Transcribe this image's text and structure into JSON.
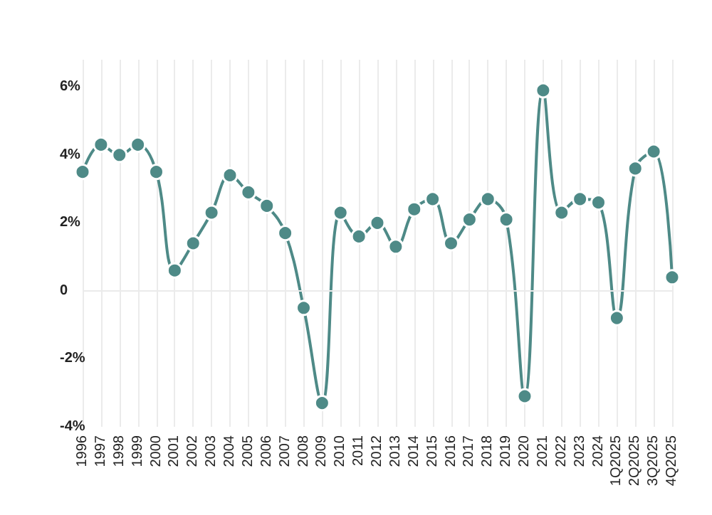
{
  "chart_data": {
    "type": "line",
    "categories": [
      "1996",
      "1997",
      "1998",
      "1999",
      "2000",
      "2001",
      "2002",
      "2003",
      "2004",
      "2005",
      "2006",
      "2007",
      "2008",
      "2009",
      "2010",
      "2011",
      "2012",
      "2013",
      "2014",
      "2015",
      "2016",
      "2017",
      "2018",
      "2019",
      "2020",
      "2021",
      "2022",
      "2023",
      "2024",
      "1Q2025",
      "2Q2025",
      "3Q2025",
      "4Q2025"
    ],
    "series": [
      {
        "color": "#4e8a87",
        "values": [
          3.5,
          4.3,
          4.0,
          4.3,
          3.5,
          0.6,
          1.4,
          2.3,
          3.4,
          2.9,
          2.5,
          1.7,
          -0.5,
          -3.3,
          2.3,
          1.6,
          2.0,
          1.3,
          2.4,
          2.7,
          1.4,
          2.1,
          2.7,
          2.1,
          -3.1,
          5.9,
          2.3,
          2.7,
          2.6,
          -0.8,
          3.6,
          4.1,
          0.4
        ]
      }
    ],
    "ylim": [
      -4,
      6.8
    ],
    "yticks": [
      {
        "value": -4,
        "label": "-4%"
      },
      {
        "value": -2,
        "label": "-2%"
      },
      {
        "value": 0,
        "label": "0"
      },
      {
        "value": 2,
        "label": "2%"
      },
      {
        "value": 4,
        "label": "4%"
      },
      {
        "value": 6,
        "label": "6%"
      }
    ],
    "grid": "x",
    "ref_lines": [
      {
        "axis": "y",
        "value": 0,
        "color": "#ebebeb"
      }
    ],
    "marker": "circle",
    "line_style": "solid"
  }
}
